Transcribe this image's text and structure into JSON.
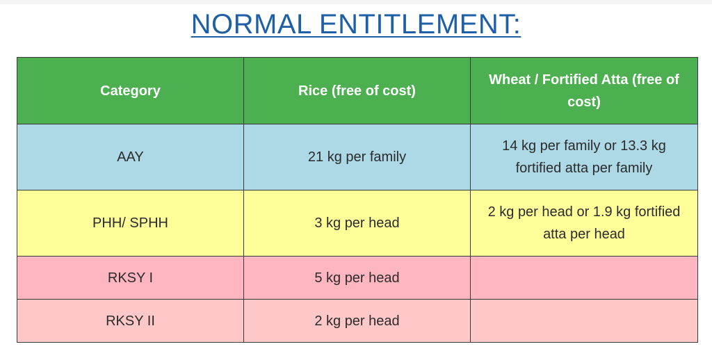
{
  "title": "NORMAL ENTITLEMENT:",
  "table": {
    "headers": [
      "Category",
      "Rice (free of cost)",
      "Wheat / Fortified Atta (free of cost)"
    ],
    "rows": [
      [
        "AAY",
        "21 kg per family",
        "14 kg per family or 13.3 kg fortified atta per family"
      ],
      [
        "PHH/ SPHH",
        "3 kg per head",
        "2 kg per head or 1.9 kg fortified atta per head"
      ],
      [
        "RKSY I",
        "5 kg per head",
        ""
      ],
      [
        "RKSY II",
        "2 kg per head",
        ""
      ]
    ]
  },
  "colors": {
    "title": "#1f5fa6",
    "header": "#4caf50",
    "aay": "#add8e6",
    "phh": "#ffff99",
    "rksy1": "#ffb6c1",
    "rksy2": "#ffc8c8"
  }
}
